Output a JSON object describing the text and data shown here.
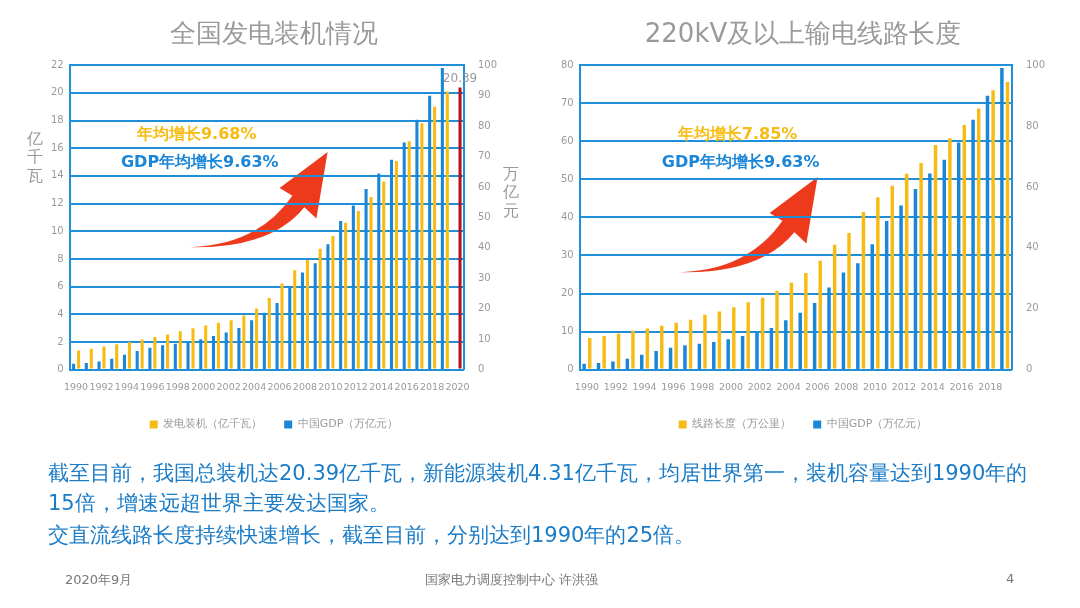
{
  "chart_data": [
    {
      "type": "bar",
      "title": "全国发电装机情况",
      "ylabel": "亿千瓦",
      "y2label": "万亿元",
      "categories": [
        "1990",
        null,
        "1992",
        null,
        "1994",
        null,
        "1996",
        null,
        "1998",
        null,
        "2000",
        null,
        "2002",
        null,
        "2004",
        null,
        "2006",
        null,
        "2008",
        null,
        "2010",
        null,
        "2012",
        null,
        "2014",
        null,
        "2016",
        null,
        "2018",
        null,
        "2020"
      ],
      "series": [
        {
          "name": "中国GDP（万亿元）",
          "color": "#1a86d8",
          "axis": "y2",
          "values": [
            1.9,
            2.2,
            2.7,
            3.6,
            4.9,
            6.1,
            7.2,
            8.0,
            8.5,
            9.1,
            10.0,
            11.0,
            12.2,
            13.7,
            16.2,
            18.7,
            21.9,
            27.0,
            31.9,
            34.9,
            41.2,
            48.8,
            53.9,
            59.3,
            64.4,
            68.9,
            74.6,
            82.1,
            90.0,
            99.1,
            null
          ]
        },
        {
          "name": "发电装机（亿千瓦）",
          "color": "#f7bc14",
          "colors": [
            "#f7bc14",
            "#f7bc14",
            "#f7bc14",
            "#f7bc14",
            "#f7bc14",
            "#f7bc14",
            "#f7bc14",
            "#f7bc14",
            "#f7bc14",
            "#f7bc14",
            "#f7bc14",
            "#f7bc14",
            "#f7bc14",
            "#f7bc14",
            "#f7bc14",
            "#f7bc14",
            "#f7bc14",
            "#f7bc14",
            "#f7bc14",
            "#f7bc14",
            "#f7bc14",
            "#f7bc14",
            "#f7bc14",
            "#f7bc14",
            "#f7bc14",
            "#f7bc14",
            "#f7bc14",
            "#f7bc14",
            "#f7bc14",
            "#f7bc14",
            "#b5121b"
          ],
          "values": [
            1.38,
            1.51,
            1.67,
            1.83,
            2.0,
            2.17,
            2.36,
            2.54,
            2.77,
            2.99,
            3.19,
            3.38,
            3.57,
            3.91,
            4.42,
            5.17,
            6.22,
            7.18,
            7.93,
            8.74,
            9.66,
            10.62,
            11.47,
            12.47,
            13.6,
            15.07,
            16.5,
            17.8,
            19.0,
            20.1,
            20.39
          ],
          "value_labels": [
            null,
            null,
            null,
            null,
            null,
            null,
            null,
            null,
            null,
            null,
            null,
            null,
            null,
            null,
            null,
            null,
            null,
            null,
            null,
            null,
            null,
            null,
            null,
            null,
            null,
            null,
            null,
            null,
            null,
            null,
            "20.39"
          ]
        }
      ],
      "ylim": [
        0,
        22
      ],
      "yticks": [
        0,
        2,
        4,
        6,
        8,
        10,
        12,
        14,
        16,
        18,
        20,
        22
      ],
      "y2lim": [
        0,
        100
      ],
      "y2ticks": [
        0,
        10,
        20,
        30,
        40,
        50,
        60,
        70,
        80,
        90,
        100
      ],
      "grid": "y",
      "legend": "bottom",
      "annotations": [
        "年均增长9.68%",
        "GDP年均增长9.63%"
      ]
    },
    {
      "type": "bar",
      "title": "220kV及以上输电线路长度",
      "categories": [
        "1990",
        null,
        "1992",
        null,
        "1994",
        null,
        "1996",
        null,
        "1998",
        null,
        "2000",
        null,
        "2002",
        null,
        "2004",
        null,
        "2006",
        null,
        "2008",
        null,
        "2010",
        null,
        "2012",
        null,
        "2014",
        null,
        "2016",
        null,
        "2018",
        null
      ],
      "series": [
        {
          "name": "中国GDP（万亿元）",
          "color": "#1a86d8",
          "axis": "y2",
          "values": [
            1.9,
            2.2,
            2.7,
            3.6,
            4.9,
            6.1,
            7.2,
            8.0,
            8.5,
            9.1,
            10.0,
            11.0,
            12.2,
            13.7,
            16.2,
            18.7,
            21.9,
            27.0,
            31.9,
            34.9,
            41.2,
            48.8,
            53.9,
            59.3,
            64.4,
            68.9,
            74.6,
            82.1,
            90.0,
            99.1
          ]
        },
        {
          "name": "线路长度（万公里）",
          "color": "#f7bc14",
          "values": [
            8.3,
            8.8,
            9.4,
            10.2,
            10.8,
            11.5,
            12.3,
            13.1,
            14.4,
            15.3,
            16.4,
            17.7,
            18.9,
            20.7,
            22.9,
            25.4,
            28.6,
            32.8,
            35.9,
            41.4,
            45.3,
            48.3,
            51.5,
            54.3,
            59.0,
            60.8,
            64.3,
            68.6,
            73.4,
            75.6
          ]
        }
      ],
      "ylim": [
        0,
        80
      ],
      "yticks": [
        0,
        10,
        20,
        30,
        40,
        50,
        60,
        70,
        80
      ],
      "y2lim": [
        0,
        100
      ],
      "y2ticks": [
        0,
        20,
        40,
        60,
        80,
        100
      ],
      "grid": "y",
      "legend": "bottom",
      "annotations": [
        "年均增长7.85%",
        "GDP年均增长9.63%"
      ]
    },
    {
      "type": "other",
      "annotations": [
        "截至目前，我国总装机达20.39亿千瓦，新能源装机4.31亿千瓦，均居世界第一，装机容量达到1990年的15倍，增速远超世界主要发达国家。",
        "交直流线路长度持续快速增长，截至目前，分别达到1990年的25倍。",
        "2020年9月",
        "国家电力调度控制中心 许洪强",
        "4"
      ]
    }
  ]
}
